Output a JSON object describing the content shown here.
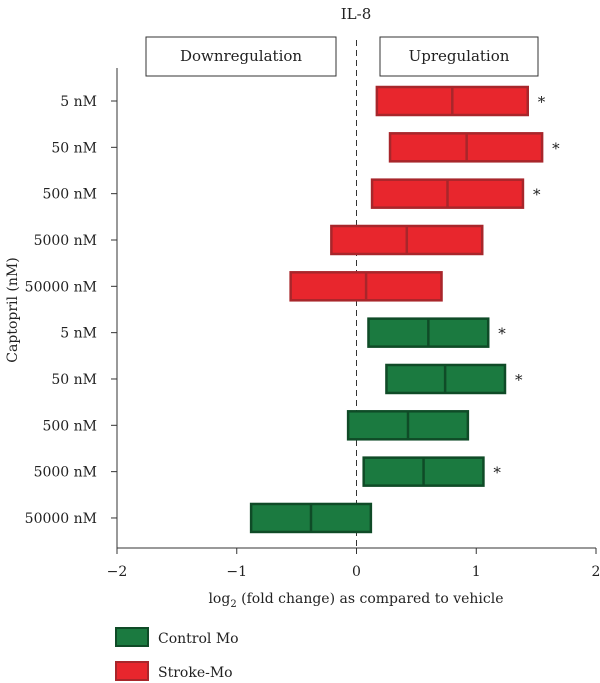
{
  "chart_data": {
    "type": "box",
    "title": "IL-8",
    "xlabel_parts": {
      "prefix": "log",
      "sub": "2",
      "suffix": " (fold change) as compared to vehicle"
    },
    "ylabel": "Captopril (nM)",
    "xlim": [
      -2,
      2
    ],
    "xticks": [
      -2,
      -1,
      0,
      1,
      2
    ],
    "xtick_labels": [
      "−2",
      "−1",
      "0",
      "1",
      "2"
    ],
    "region_labels": {
      "down": "Downregulation",
      "up": "Upregulation"
    },
    "colors": {
      "stroke": "#e8262d",
      "stroke_border": "#a8262b",
      "control": "#1b7a40",
      "control_border": "#0f4b27",
      "axis": "#333333"
    },
    "rows": [
      {
        "label": "5 nM",
        "series": "Stroke-Mo",
        "low": 0.17,
        "mid": 0.8,
        "high": 1.43,
        "sig": true
      },
      {
        "label": "50 nM",
        "series": "Stroke-Mo",
        "low": 0.28,
        "mid": 0.92,
        "high": 1.55,
        "sig": true
      },
      {
        "label": "500 nM",
        "series": "Stroke-Mo",
        "low": 0.13,
        "mid": 0.76,
        "high": 1.39,
        "sig": true
      },
      {
        "label": "5000 nM",
        "series": "Stroke-Mo",
        "low": -0.21,
        "mid": 0.42,
        "high": 1.05,
        "sig": false
      },
      {
        "label": "50000 nM",
        "series": "Stroke-Mo",
        "low": -0.55,
        "mid": 0.08,
        "high": 0.71,
        "sig": false
      },
      {
        "label": "5 nM",
        "series": "Control Mo",
        "low": 0.1,
        "mid": 0.6,
        "high": 1.1,
        "sig": true
      },
      {
        "label": "50 nM",
        "series": "Control Mo",
        "low": 0.25,
        "mid": 0.74,
        "high": 1.24,
        "sig": true
      },
      {
        "label": "500 nM",
        "series": "Control Mo",
        "low": -0.07,
        "mid": 0.43,
        "high": 0.93,
        "sig": false
      },
      {
        "label": "5000 nM",
        "series": "Control Mo",
        "low": 0.06,
        "mid": 0.56,
        "high": 1.06,
        "sig": true
      },
      {
        "label": "50000 nM",
        "series": "Control Mo",
        "low": -0.88,
        "mid": -0.38,
        "high": 0.12,
        "sig": false
      }
    ],
    "significance_marker": "*",
    "legend": [
      {
        "name": "Control Mo",
        "series": "Control Mo"
      },
      {
        "name": "Stroke-Mo",
        "series": "Stroke-Mo"
      }
    ]
  }
}
